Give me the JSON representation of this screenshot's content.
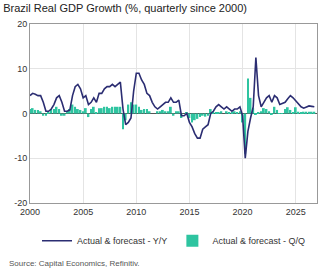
{
  "chart_data": {
    "type": "combo",
    "title": "Brazil Real GDP Growth (%, quarterly since 2000)",
    "source": "Source: Capital Economics, Refinitiv.",
    "x": [
      2000,
      2000.25,
      2000.5,
      2000.75,
      2001,
      2001.25,
      2001.5,
      2001.75,
      2002,
      2002.25,
      2002.5,
      2002.75,
      2003,
      2003.25,
      2003.5,
      2003.75,
      2004,
      2004.25,
      2004.5,
      2004.75,
      2005,
      2005.25,
      2005.5,
      2005.75,
      2006,
      2006.25,
      2006.5,
      2006.75,
      2007,
      2007.25,
      2007.5,
      2007.75,
      2008,
      2008.25,
      2008.5,
      2008.75,
      2009,
      2009.25,
      2009.5,
      2009.75,
      2010,
      2010.25,
      2010.5,
      2010.75,
      2011,
      2011.25,
      2011.5,
      2011.75,
      2012,
      2012.25,
      2012.5,
      2012.75,
      2013,
      2013.25,
      2013.5,
      2013.75,
      2014,
      2014.25,
      2014.5,
      2014.75,
      2015,
      2015.25,
      2015.5,
      2015.75,
      2016,
      2016.25,
      2016.5,
      2016.75,
      2017,
      2017.25,
      2017.5,
      2017.75,
      2018,
      2018.25,
      2018.5,
      2018.75,
      2019,
      2019.25,
      2019.5,
      2019.75,
      2020,
      2020.25,
      2020.5,
      2020.75,
      2021,
      2021.25,
      2021.5,
      2021.75,
      2022,
      2022.25,
      2022.5,
      2022.75,
      2023,
      2023.25,
      2023.5,
      2023.75,
      2024,
      2024.25,
      2024.5,
      2024.75,
      2025,
      2025.25,
      2025.5,
      2025.75,
      2026,
      2026.25,
      2026.5,
      2026.75
    ],
    "series": [
      {
        "name": "Actual & forecast - Y/Y",
        "type": "line",
        "color": "#2b2d72",
        "values": [
          4.0,
          4.5,
          4.3,
          4.0,
          4.0,
          2.5,
          0.5,
          0.5,
          1.0,
          2.0,
          3.5,
          4.0,
          2.5,
          0.5,
          0.5,
          0.8,
          4.0,
          6.0,
          6.5,
          5.5,
          3.5,
          4.0,
          2.0,
          2.5,
          3.5,
          2.5,
          4.5,
          4.5,
          5.5,
          6.0,
          6.0,
          6.5,
          6.0,
          6.5,
          7.0,
          1.0,
          -2.5,
          -2.0,
          -1.0,
          5.0,
          9.0,
          9.0,
          7.5,
          6.5,
          4.5,
          4.0,
          2.5,
          1.5,
          1.0,
          1.5,
          2.0,
          2.5,
          2.5,
          3.5,
          2.5,
          2.5,
          3.0,
          -0.5,
          -0.5,
          0.0,
          -2.0,
          -3.0,
          -4.5,
          -5.5,
          -5.5,
          -3.5,
          -3.0,
          -2.5,
          0.0,
          0.5,
          1.5,
          2.0,
          1.5,
          1.0,
          1.5,
          1.0,
          0.5,
          1.0,
          1.0,
          1.5,
          -0.5,
          -10.0,
          -4.0,
          -1.0,
          1.5,
          12.5,
          4.0,
          1.5,
          2.5,
          3.5,
          4.0,
          2.5,
          4.0,
          3.5,
          2.0,
          2.2,
          2.5,
          3.3,
          4.0,
          3.5,
          2.8,
          2.2,
          1.5,
          1.2,
          1.5,
          1.7,
          1.6,
          1.5
        ]
      },
      {
        "name": "Actual & forecast - Q/Q",
        "type": "bar",
        "color": "#2ec4a0",
        "values": [
          1.0,
          1.2,
          0.8,
          0.8,
          0.5,
          -0.5,
          -0.5,
          0.3,
          1.0,
          1.0,
          1.5,
          1.0,
          -0.5,
          -0.5,
          0.5,
          1.0,
          2.0,
          1.5,
          1.0,
          0.8,
          0.5,
          1.2,
          -0.8,
          1.0,
          1.5,
          0.3,
          1.2,
          1.2,
          1.5,
          1.5,
          1.2,
          1.5,
          1.5,
          1.5,
          1.5,
          -3.5,
          -1.5,
          2.0,
          2.5,
          2.0,
          2.0,
          1.5,
          0.8,
          1.0,
          1.0,
          0.5,
          0.0,
          0.0,
          0.5,
          0.5,
          0.8,
          0.5,
          0.5,
          1.5,
          -0.5,
          0.5,
          0.5,
          -1.0,
          0.0,
          0.3,
          -1.0,
          -2.0,
          -1.5,
          -1.2,
          -0.8,
          -0.5,
          -0.7,
          -0.5,
          1.0,
          0.3,
          0.3,
          0.2,
          0.5,
          0.0,
          0.5,
          0.2,
          0.3,
          0.5,
          0.3,
          0.5,
          -2.0,
          -9.0,
          7.8,
          3.5,
          1.2,
          -0.2,
          0.2,
          0.5,
          1.2,
          1.0,
          0.5,
          -0.2,
          1.5,
          0.8,
          0.1,
          0.1,
          1.0,
          1.4,
          0.8,
          0.2,
          1.4,
          0.4,
          0.3,
          0.4,
          0.4,
          0.4,
          0.4,
          0.4
        ]
      }
    ],
    "xlim": [
      2000,
      2027
    ],
    "xticks": [
      2000,
      2005,
      2010,
      2015,
      2020,
      2025
    ],
    "ylim": [
      -20,
      20
    ],
    "yticks": [
      -20,
      -10,
      0,
      10,
      20
    ],
    "grid": true,
    "legend": "bottom"
  }
}
